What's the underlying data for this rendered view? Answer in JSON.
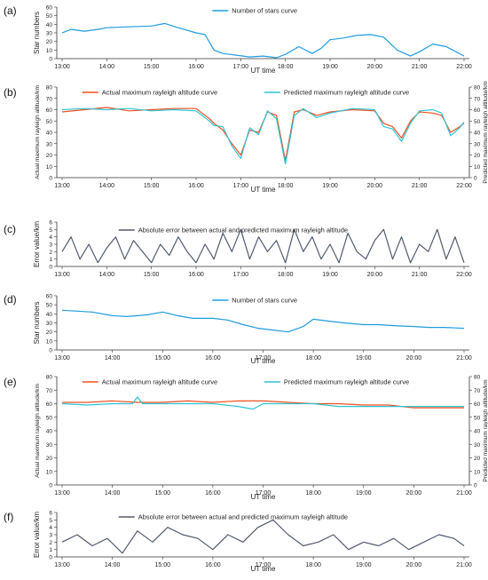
{
  "chart_data": [
    {
      "type": "line",
      "panel_label": "(a)",
      "xlabel": "UT time",
      "ylabel": "Star numbers",
      "x_ticks": [
        "13:00",
        "14:00",
        "15:00",
        "16:00",
        "17:00",
        "18:00",
        "19:00",
        "20:00",
        "21:00",
        "22:00"
      ],
      "ylim": [
        0,
        60
      ],
      "y_ticks": [
        0,
        10,
        20,
        30,
        40,
        50,
        60
      ],
      "series": [
        {
          "name": "Number of stars curve",
          "color": "#1f9be0",
          "x": [
            13,
            13.2,
            13.5,
            13.8,
            14,
            14.5,
            15,
            15.3,
            15.6,
            16,
            16.2,
            16.4,
            16.6,
            16.9,
            17.2,
            17.5,
            17.8,
            18,
            18.3,
            18.6,
            18.8,
            19,
            19.3,
            19.6,
            19.9,
            20.2,
            20.5,
            20.8,
            21,
            21.3,
            21.6,
            22
          ],
          "y": [
            30,
            34,
            32,
            34,
            36,
            37,
            38,
            41,
            36,
            30,
            28,
            10,
            6,
            4,
            2,
            3,
            1,
            5,
            14,
            6,
            12,
            22,
            24,
            27,
            28,
            25,
            10,
            3,
            8,
            17,
            14,
            3
          ]
        }
      ]
    },
    {
      "type": "line",
      "panel_label": "(b)",
      "xlabel": "UT time",
      "ylabel": "Actual maximum rayleigh altitude/km",
      "ylabel_right": "Predicted maximum rayleigh altitude/km",
      "x_ticks": [
        "13:00",
        "14:00",
        "15:00",
        "16:00",
        "17:00",
        "18:00",
        "19:00",
        "20:00",
        "21:00",
        "22:00"
      ],
      "ylim": [
        0,
        80
      ],
      "y_ticks": [
        0,
        10,
        20,
        30,
        40,
        50,
        60,
        70,
        80
      ],
      "ylim_right": [
        0,
        80
      ],
      "y_ticks_right": [
        0,
        10,
        20,
        30,
        40,
        50,
        60,
        70,
        80
      ],
      "series": [
        {
          "name": "Actual maximum rayleigh altitude curve",
          "color": "#f0501e",
          "x": [
            13,
            13.5,
            14,
            14.5,
            15,
            15.5,
            16,
            16.3,
            16.4,
            16.6,
            16.8,
            17,
            17.2,
            17.4,
            17.6,
            17.8,
            18,
            18.2,
            18.4,
            18.7,
            19,
            19.5,
            20,
            20.2,
            20.4,
            20.6,
            20.8,
            21,
            21.3,
            21.5,
            21.7,
            21.9,
            22
          ],
          "y": [
            58,
            60,
            62,
            59,
            60,
            61,
            61,
            52,
            48,
            42,
            30,
            20,
            42,
            40,
            58,
            55,
            15,
            58,
            60,
            55,
            58,
            60,
            59,
            48,
            45,
            35,
            50,
            58,
            57,
            55,
            40,
            45,
            48
          ]
        },
        {
          "name": "Predicted maximum rayleigh altitude curve",
          "color": "#2ec4d6",
          "x": [
            13,
            13.5,
            14,
            14.5,
            15,
            15.5,
            16,
            16.3,
            16.4,
            16.6,
            16.8,
            17,
            17.2,
            17.4,
            17.6,
            17.8,
            18,
            18.2,
            18.4,
            18.7,
            19,
            19.5,
            20,
            20.2,
            20.4,
            20.6,
            20.8,
            21,
            21.3,
            21.5,
            21.7,
            21.9,
            22
          ],
          "y": [
            60,
            61,
            60,
            61,
            59,
            60,
            59,
            50,
            46,
            45,
            28,
            17,
            44,
            38,
            59,
            52,
            12,
            55,
            61,
            53,
            57,
            61,
            60,
            45,
            43,
            32,
            48,
            59,
            60,
            57,
            37,
            44,
            49
          ]
        }
      ]
    },
    {
      "type": "line",
      "panel_label": "(c)",
      "xlabel": "",
      "ylabel": "Error value/km",
      "x_ticks": [
        "13:00",
        "14:00",
        "15:00",
        "16:00",
        "17:00",
        "18:00",
        "19:00",
        "20:00",
        "21:00",
        "22:00"
      ],
      "ylim": [
        0,
        6
      ],
      "y_ticks": [
        0,
        1,
        2,
        3,
        4,
        5,
        6
      ],
      "series": [
        {
          "name": "Absolute error between actual and predicted maximum rayleigh altitude",
          "color": "#505a6e",
          "x": [
            13,
            13.2,
            13.4,
            13.6,
            13.8,
            14,
            14.2,
            14.4,
            14.6,
            14.8,
            15,
            15.2,
            15.4,
            15.6,
            15.8,
            16,
            16.2,
            16.4,
            16.6,
            16.8,
            17,
            17.2,
            17.4,
            17.6,
            17.8,
            18,
            18.2,
            18.4,
            18.6,
            18.8,
            19,
            19.2,
            19.4,
            19.6,
            19.8,
            20,
            20.2,
            20.4,
            20.6,
            20.8,
            21,
            21.2,
            21.4,
            21.6,
            21.8,
            22
          ],
          "y": [
            2,
            4,
            1,
            3,
            0.5,
            2.5,
            4,
            1,
            3.5,
            2,
            0.5,
            3,
            1.5,
            4,
            2,
            0.5,
            3,
            1,
            4.5,
            2,
            5,
            1,
            4,
            2,
            3.5,
            0.5,
            5,
            2,
            4,
            1,
            3,
            0.5,
            4.5,
            2,
            1,
            3.5,
            5,
            1,
            4,
            0.5,
            3,
            2,
            5,
            1,
            4,
            0.5
          ]
        }
      ]
    },
    {
      "type": "line",
      "panel_label": "(d)",
      "xlabel": "UT time",
      "ylabel": "Star numbers",
      "x_ticks": [
        "13:00",
        "14:00",
        "15:00",
        "16:00",
        "17:00",
        "18:00",
        "19:00",
        "20:00",
        "21:00"
      ],
      "ylim": [
        0,
        60
      ],
      "y_ticks": [
        0,
        10,
        20,
        30,
        40,
        50,
        60
      ],
      "series": [
        {
          "name": "Number of stars curve",
          "color": "#1f9be0",
          "x": [
            13,
            13.3,
            13.6,
            14,
            14.3,
            14.7,
            15,
            15.3,
            15.6,
            16,
            16.3,
            16.6,
            16.9,
            17.2,
            17.5,
            17.8,
            18,
            18.3,
            18.6,
            19,
            19.3,
            19.6,
            20,
            20.3,
            20.6,
            21
          ],
          "y": [
            44,
            43,
            42,
            38,
            37,
            39,
            42,
            38,
            35,
            35,
            33,
            28,
            24,
            22,
            20,
            26,
            34,
            32,
            30,
            28,
            28,
            27,
            26,
            25,
            25,
            24
          ]
        }
      ]
    },
    {
      "type": "line",
      "panel_label": "(e)",
      "xlabel": "UT time",
      "ylabel": "Actual maximum rayleigh altitude/km",
      "ylabel_right": "Predicted maximum rayleigh altitude/km",
      "x_ticks": [
        "13:00",
        "14:00",
        "15:00",
        "16:00",
        "17:00",
        "18:00",
        "19:00",
        "20:00",
        "21:00"
      ],
      "ylim": [
        0,
        80
      ],
      "y_ticks": [
        0,
        10,
        20,
        30,
        40,
        50,
        60,
        70,
        80
      ],
      "ylim_right": [
        0,
        80
      ],
      "y_ticks_right": [
        0,
        10,
        20,
        30,
        40,
        50,
        60,
        70,
        80
      ],
      "series": [
        {
          "name": "Actual maximum rayleigh altitude curve",
          "color": "#f0501e",
          "x": [
            13,
            13.5,
            14,
            14.5,
            15,
            15.5,
            16,
            16.5,
            17,
            17.5,
            18,
            18.5,
            19,
            19.5,
            20,
            20.5,
            21
          ],
          "y": [
            61,
            61,
            62,
            61,
            61,
            62,
            61,
            62,
            62,
            61,
            60,
            60,
            59,
            59,
            57,
            57,
            57
          ]
        },
        {
          "name": "Predicted maximum rayleigh altitude curve",
          "color": "#2ec4d6",
          "x": [
            13,
            13.5,
            14,
            14.4,
            14.5,
            14.6,
            15,
            15.5,
            16,
            16.5,
            16.8,
            17,
            17.5,
            18,
            18.5,
            19,
            19.5,
            20,
            20.5,
            21
          ],
          "y": [
            60,
            59,
            60,
            60,
            65,
            60,
            60,
            60,
            60,
            58,
            56,
            60,
            60,
            60,
            58,
            58,
            58,
            58,
            58,
            58
          ]
        }
      ]
    },
    {
      "type": "line",
      "panel_label": "(f)",
      "xlabel": "UT time",
      "ylabel": "Error value/km",
      "x_ticks": [
        "13:00",
        "14:00",
        "15:00",
        "16:00",
        "17:00",
        "18:00",
        "19:00",
        "20:00",
        "21:00"
      ],
      "ylim": [
        0,
        6
      ],
      "y_ticks": [
        0,
        1,
        2,
        3,
        4,
        5,
        6
      ],
      "series": [
        {
          "name": "Absolute error between actual and predicted maximum rayleigh altitude",
          "color": "#505a6e",
          "x": [
            13,
            13.3,
            13.6,
            13.9,
            14.2,
            14.5,
            14.8,
            15.1,
            15.4,
            15.7,
            16,
            16.3,
            16.6,
            16.9,
            17.2,
            17.5,
            17.8,
            18.1,
            18.4,
            18.7,
            19,
            19.3,
            19.6,
            19.9,
            20.2,
            20.5,
            20.8,
            21
          ],
          "y": [
            2,
            3,
            1.5,
            2.5,
            0.5,
            3.5,
            2,
            4,
            3,
            2.5,
            1,
            3,
            2,
            4,
            5,
            3,
            1.5,
            2,
            3,
            1,
            2,
            1.5,
            2.5,
            1,
            2,
            3,
            2.5,
            1.5
          ]
        }
      ]
    }
  ]
}
